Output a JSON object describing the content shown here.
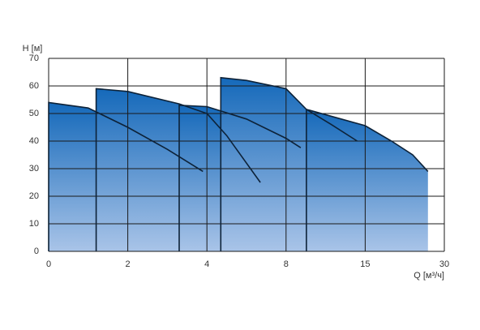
{
  "chart_data": {
    "type": "area",
    "x_label": "Q [м³/ч]",
    "y_label": "H [м]",
    "x_scale": "piecewise",
    "xlim": [
      0,
      30
    ],
    "xticks": [
      0,
      2,
      4,
      8,
      15,
      30
    ],
    "ylim": [
      0,
      70
    ],
    "yticks": [
      0,
      10,
      20,
      30,
      40,
      50,
      60,
      70
    ],
    "grid": true,
    "fill_top_color": "#1569ba",
    "fill_bottom_color": "#a9c4e8",
    "line_color": "#0d2238",
    "series": [
      {
        "x": [
          0,
          1,
          2,
          3,
          3.9
        ],
        "values": [
          54,
          52,
          45,
          37,
          29
        ]
      },
      {
        "x": [
          1.2,
          2,
          3.3,
          4,
          5,
          6.7
        ],
        "values": [
          59,
          58,
          53.5,
          50,
          42,
          25
        ]
      },
      {
        "x": [
          3.3,
          4,
          6,
          8,
          9.3
        ],
        "values": [
          53,
          52.5,
          48,
          41,
          37.6
        ]
      },
      {
        "x": [
          4.7,
          6,
          8,
          9.8,
          12,
          14.3
        ],
        "values": [
          63,
          62,
          59,
          51.5,
          46,
          40
        ]
      },
      {
        "x": [
          9.8,
          15,
          20,
          24,
          26.9
        ],
        "values": [
          51.5,
          45.6,
          40,
          35,
          29
        ]
      }
    ]
  }
}
